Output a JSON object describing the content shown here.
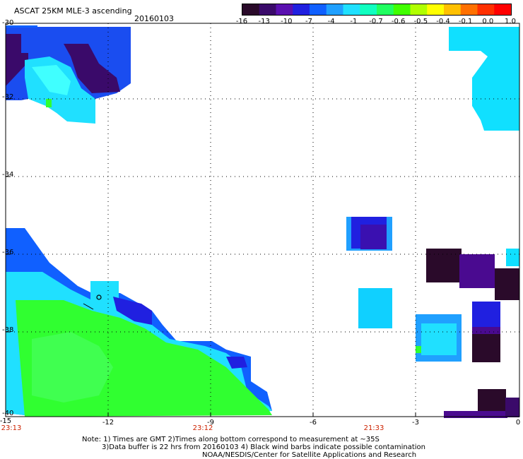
{
  "title": "ASCAT 25KM MLE-3 ascending",
  "date": "20160103",
  "colorbar": {
    "colors": [
      "#2a0a2a",
      "#3a0a6a",
      "#5a10b0",
      "#2020e0",
      "#1060ff",
      "#20a0ff",
      "#20e0ff",
      "#10ffc0",
      "#20ff60",
      "#40ff00",
      "#b0ff00",
      "#ffff00",
      "#ffc000",
      "#ff7000",
      "#ff3000",
      "#ff0000"
    ],
    "ticks": [
      "-16",
      "-13",
      "-10",
      "-7",
      "-4",
      "-1",
      "-0.7",
      "-0.6",
      "-0.5",
      "-0.4",
      "-0.1",
      "0.0",
      "1.0"
    ]
  },
  "y_labels": [
    "-30",
    "-32",
    "-34",
    "-36",
    "-38",
    "-40"
  ],
  "x_labels": [
    "-15",
    "-12",
    "-9",
    "-6",
    "-3",
    "0"
  ],
  "times": [
    "23:13",
    "23:12",
    "21:33"
  ],
  "notes": [
    "Note: 1) Times are GMT 2)Times along bottom correspond to measurement at ~35S",
    "3)Data buffer is 22 hrs from 20160103 4) Black wind barbs indicate possible contamination",
    "NOAA/NESDIS/Center for Satellite Applications and Research"
  ],
  "map": {
    "lat_range": [
      -40,
      -30
    ],
    "lon_range": [
      -15,
      0
    ],
    "regions": [
      {
        "name": "nw-swath-dark",
        "color": "#3a0a6a"
      },
      {
        "name": "nw-swath-blue",
        "color": "#1a4df0"
      },
      {
        "name": "nw-swath-cyan",
        "color": "#20e0ff"
      },
      {
        "name": "sw-swath-blue",
        "color": "#1060ff"
      },
      {
        "name": "sw-swath-cyan",
        "color": "#20e0ff"
      },
      {
        "name": "sw-swath-green",
        "color": "#30ff30"
      },
      {
        "name": "ne-swath-cyan",
        "color": "#10e0ff"
      },
      {
        "name": "mid-east-blue",
        "color": "#2020e0"
      },
      {
        "name": "mid-east-cyan",
        "color": "#10d0ff"
      },
      {
        "name": "se-dark",
        "color": "#2a0a2a"
      },
      {
        "name": "se-purple",
        "color": "#4a0a90"
      },
      {
        "name": "se-blue",
        "color": "#2020e0"
      }
    ]
  }
}
